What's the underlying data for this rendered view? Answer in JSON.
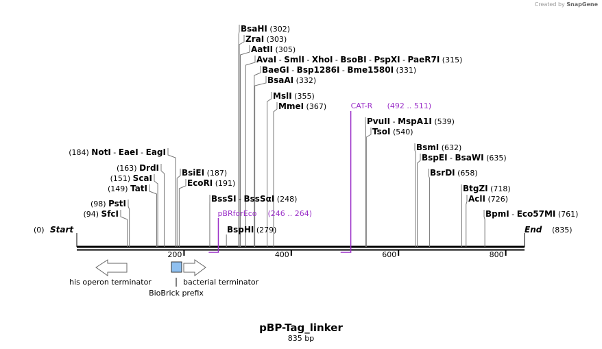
{
  "credit": {
    "prefix": "Created by",
    "brand": "SnapGene"
  },
  "title": "pBP-Tag_linker",
  "subtitle": "835 bp",
  "map": {
    "length": 835,
    "start_label": {
      "name": "Start",
      "pos": "(0)"
    },
    "end_label": {
      "name": "End",
      "pos": "(835)"
    },
    "ticks": [
      {
        "value": 200,
        "label": "200"
      },
      {
        "value": 400,
        "label": "400"
      },
      {
        "value": 600,
        "label": "600"
      },
      {
        "value": 800,
        "label": "800"
      }
    ],
    "sites_right": [
      {
        "names": [
          "BsaHI"
        ],
        "pos": "(302)"
      },
      {
        "names": [
          "ZraI"
        ],
        "pos": "(303)"
      },
      {
        "names": [
          "AatII"
        ],
        "pos": "(305)"
      },
      {
        "names": [
          "AvaI",
          "SmlI",
          "XhoI",
          "BsoBI",
          "PspXI",
          "PaeR7I"
        ],
        "pos": "(315)"
      },
      {
        "names": [
          "BaeGI",
          "Bsp1286I",
          "Bme1580I"
        ],
        "pos": "(331)"
      },
      {
        "names": [
          "BsaAI"
        ],
        "pos": "(332)"
      },
      {
        "names": [
          "MslI"
        ],
        "pos": "(355)"
      },
      {
        "names": [
          "MmeI"
        ],
        "pos": "(367)"
      },
      {
        "names": [
          "PvuII",
          "MspA1I"
        ],
        "pos": "(539)"
      },
      {
        "names": [
          "TsoI"
        ],
        "pos": "(540)"
      },
      {
        "names": [
          "BsmI"
        ],
        "pos": "(632)"
      },
      {
        "names": [
          "BspEI",
          "BsaWI"
        ],
        "pos": "(635)"
      },
      {
        "names": [
          "BsrDI"
        ],
        "pos": "(658)"
      },
      {
        "names": [
          "BtgZI"
        ],
        "pos": "(718)"
      },
      {
        "names": [
          "AclI"
        ],
        "pos": "(726)"
      },
      {
        "names": [
          "BpmI",
          "Eco57MI"
        ],
        "pos": "(761)"
      },
      {
        "names": [
          "BsiEI"
        ],
        "pos": "(187)"
      },
      {
        "names": [
          "EcoRI"
        ],
        "pos": "(191)"
      },
      {
        "names": [
          "BssSI",
          "BssSαI"
        ],
        "pos": "(248)"
      },
      {
        "names": [
          "BspHI"
        ],
        "pos": "(279)"
      }
    ],
    "sites_left": [
      {
        "names": [
          "NotI",
          "EaeI",
          "EagI"
        ],
        "pos": "(184)"
      },
      {
        "names": [
          "DrdI"
        ],
        "pos": "(163)"
      },
      {
        "names": [
          "ScaI"
        ],
        "pos": "(151)"
      },
      {
        "names": [
          "TatI"
        ],
        "pos": "(149)"
      },
      {
        "names": [
          "PstI"
        ],
        "pos": "(98)"
      },
      {
        "names": [
          "SfcI"
        ],
        "pos": "(94)"
      }
    ],
    "primers": [
      {
        "name": "CAT-R",
        "range": "(492 .. 511)",
        "color": "#9b30c8"
      },
      {
        "name": "pBRforEco",
        "range": "(246 .. 264)",
        "color": "#9b30c8"
      }
    ],
    "features": [
      {
        "name": "his operon terminator"
      },
      {
        "name": "BioBrick prefix",
        "color": "#8fc0f0"
      },
      {
        "name": "bacterial terminator"
      }
    ]
  }
}
